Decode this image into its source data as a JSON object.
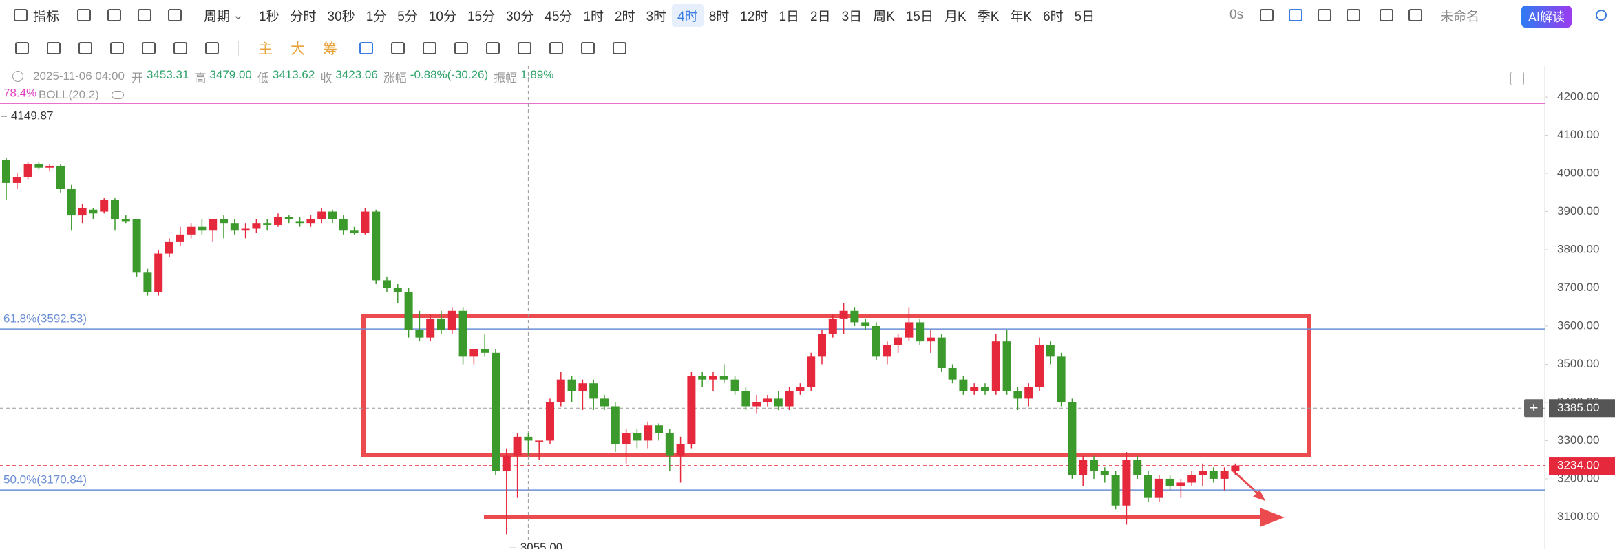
{
  "toolbar": {
    "indicator": "指标",
    "period": "周期",
    "periods": [
      "1秒",
      "分时",
      "30秒",
      "1分",
      "5分",
      "10分",
      "15分",
      "30分",
      "45分",
      "1时",
      "2时",
      "3时",
      "4时",
      "8时",
      "12时",
      "1日",
      "2日",
      "3日",
      "周K",
      "15日",
      "月K",
      "季K",
      "年K",
      "6时",
      "5日"
    ],
    "active_period_index": 12,
    "timer": "0s",
    "name": "未命名",
    "ai": "AI解读"
  },
  "drawing_toolbar": {
    "buttons": [
      "主",
      "大",
      "筹"
    ]
  },
  "info": {
    "datetime": "2025-11-06 04:00",
    "items": [
      {
        "label": "开",
        "value": "3453.31"
      },
      {
        "label": "高",
        "value": "3479.00"
      },
      {
        "label": "低",
        "value": "3413.62"
      },
      {
        "label": "收",
        "value": "3423.06"
      },
      {
        "label": "涨幅",
        "value": "-0.88%(-30.26)"
      },
      {
        "label": "振幅",
        "value": "1.89%"
      }
    ],
    "indicator": "BOLL(20,2)"
  },
  "chart_data": {
    "type": "candlestick",
    "up_color": "#e5283b",
    "down_color": "#3c9a2c",
    "ylim": [
      3016,
      4238
    ],
    "yticks": [
      {
        "value": 3100,
        "label": "3100.00"
      },
      {
        "value": 3200,
        "label": "3200.00"
      },
      {
        "value": 3300,
        "label": "3300.00"
      },
      {
        "value": 3400,
        "label": "3400.00"
      },
      {
        "value": 3500,
        "label": "3500.00"
      },
      {
        "value": 3600,
        "label": "3600.00"
      },
      {
        "value": 3700,
        "label": "3700.00"
      },
      {
        "value": 3800,
        "label": "3800.00"
      },
      {
        "value": 3900,
        "label": "3900.00"
      },
      {
        "value": 4000,
        "label": "4000.00"
      },
      {
        "value": 4100,
        "label": "4100.00"
      },
      {
        "value": 4200,
        "label": "4200.00"
      }
    ],
    "open": [
      4035,
      3975,
      3990,
      4025,
      4015,
      4020,
      3960,
      3890,
      3905,
      3900,
      3930,
      3880,
      3880,
      3740,
      3690,
      3790,
      3820,
      3840,
      3860,
      3850,
      3880,
      3870,
      3850,
      3855,
      3870,
      3865,
      3885,
      3875,
      3870,
      3880,
      3900,
      3880,
      3850,
      3845,
      3900,
      3720,
      3700,
      3690,
      3590,
      3570,
      3620,
      3590,
      3640,
      3520,
      3540,
      3530,
      3220,
      3260,
      3310,
      3300,
      3300,
      3400,
      3460,
      3430,
      3450,
      3410,
      3390,
      3290,
      3320,
      3300,
      3340,
      3320,
      3260,
      3290,
      3470,
      3460,
      3470,
      3460,
      3430,
      3390,
      3400,
      3410,
      3390,
      3430,
      3440,
      3520,
      3580,
      3620,
      3640,
      3610,
      3600,
      3520,
      3550,
      3570,
      3610,
      3560,
      3570,
      3490,
      3460,
      3430,
      3440,
      3430,
      3560,
      3430,
      3410,
      3440,
      3550,
      3520,
      3400,
      3210,
      3250,
      3220,
      3210,
      3130,
      3250,
      3210,
      3150,
      3200,
      3180,
      3190,
      3210,
      3220,
      3200,
      3220
    ],
    "high": [
      4040,
      4000,
      4030,
      4030,
      4025,
      4025,
      3970,
      3920,
      3910,
      3935,
      3935,
      3890,
      3880,
      3750,
      3800,
      3830,
      3860,
      3870,
      3880,
      3880,
      3890,
      3880,
      3870,
      3880,
      3880,
      3895,
      3890,
      3885,
      3890,
      3910,
      3905,
      3890,
      3860,
      3910,
      3905,
      3730,
      3710,
      3700,
      3640,
      3630,
      3640,
      3650,
      3650,
      3540,
      3580,
      3540,
      3280,
      3320,
      3320,
      3300,
      3410,
      3480,
      3470,
      3460,
      3460,
      3420,
      3400,
      3330,
      3330,
      3350,
      3345,
      3330,
      3310,
      3480,
      3480,
      3480,
      3500,
      3470,
      3440,
      3420,
      3420,
      3430,
      3440,
      3450,
      3530,
      3590,
      3630,
      3660,
      3650,
      3620,
      3610,
      3560,
      3580,
      3650,
      3620,
      3590,
      3580,
      3500,
      3470,
      3450,
      3450,
      3580,
      3590,
      3440,
      3450,
      3570,
      3560,
      3530,
      3410,
      3260,
      3260,
      3230,
      3220,
      3270,
      3260,
      3220,
      3210,
      3210,
      3200,
      3220,
      3240,
      3230,
      3230,
      3240
    ],
    "low": [
      3930,
      3960,
      3985,
      4010,
      4005,
      3950,
      3850,
      3870,
      3880,
      3895,
      3850,
      3870,
      3730,
      3680,
      3680,
      3780,
      3810,
      3830,
      3840,
      3820,
      3830,
      3840,
      3830,
      3845,
      3850,
      3860,
      3870,
      3860,
      3860,
      3870,
      3870,
      3840,
      3840,
      3840,
      3710,
      3690,
      3660,
      3570,
      3560,
      3560,
      3580,
      3580,
      3500,
      3500,
      3520,
      3210,
      3055,
      3150,
      3260,
      3250,
      3290,
      3390,
      3400,
      3380,
      3380,
      3380,
      3270,
      3240,
      3280,
      3280,
      3300,
      3220,
      3190,
      3280,
      3440,
      3430,
      3450,
      3420,
      3380,
      3370,
      3390,
      3380,
      3380,
      3420,
      3430,
      3500,
      3570,
      3580,
      3600,
      3590,
      3510,
      3500,
      3530,
      3560,
      3550,
      3530,
      3480,
      3450,
      3420,
      3420,
      3420,
      3420,
      3420,
      3380,
      3390,
      3430,
      3500,
      3390,
      3200,
      3180,
      3200,
      3190,
      3120,
      3080,
      3200,
      3140,
      3140,
      3170,
      3150,
      3180,
      3180,
      3190,
      3170,
      3210
    ],
    "close": [
      3975,
      3990,
      4025,
      4015,
      4020,
      3960,
      3890,
      3910,
      3895,
      3930,
      3880,
      3875,
      3740,
      3690,
      3790,
      3820,
      3840,
      3860,
      3850,
      3880,
      3870,
      3850,
      3855,
      3870,
      3865,
      3885,
      3880,
      3870,
      3880,
      3900,
      3880,
      3850,
      3845,
      3900,
      3720,
      3700,
      3690,
      3590,
      3570,
      3620,
      3590,
      3640,
      3520,
      3540,
      3530,
      3220,
      3260,
      3310,
      3300,
      3300,
      3400,
      3460,
      3430,
      3450,
      3410,
      3390,
      3290,
      3320,
      3300,
      3340,
      3320,
      3260,
      3290,
      3470,
      3460,
      3470,
      3460,
      3430,
      3390,
      3400,
      3410,
      3390,
      3430,
      3440,
      3520,
      3580,
      3620,
      3640,
      3610,
      3600,
      3520,
      3550,
      3570,
      3610,
      3560,
      3570,
      3490,
      3460,
      3430,
      3440,
      3430,
      3560,
      3430,
      3410,
      3440,
      3550,
      3520,
      3400,
      3210,
      3250,
      3220,
      3210,
      3130,
      3250,
      3210,
      3150,
      3200,
      3180,
      3190,
      3210,
      3220,
      3200,
      3220,
      3235
    ],
    "price_lines": [
      {
        "label": "78.4%",
        "value": 4184,
        "color": "#e040c0"
      },
      {
        "label": "61.8%(3592.53)",
        "value": 3592.53,
        "color": "#6b8fd6"
      },
      {
        "label": "50.0%(3170.84)",
        "value": 3170.84,
        "color": "#6b8fd6"
      }
    ],
    "crosshair": {
      "price": {
        "value": 3385,
        "label": "3385.00"
      },
      "index": 48
    },
    "last_price": {
      "value": 3234,
      "label": "3234.00"
    },
    "max_marker": {
      "value": 4149.87,
      "index": 0
    },
    "min_marker": {
      "value": 3055,
      "label": "3055.00",
      "index": 46
    }
  }
}
